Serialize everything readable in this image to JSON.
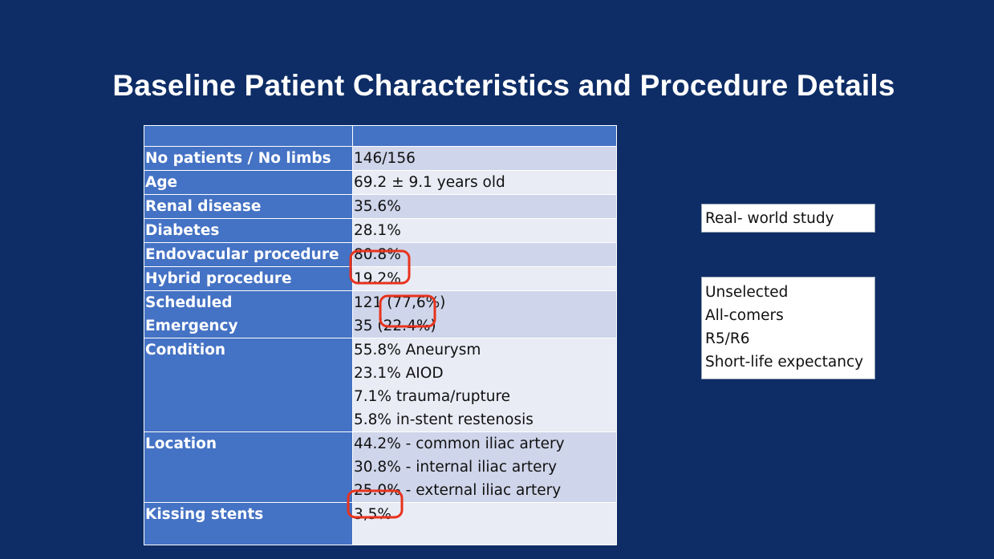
{
  "title": "Baseline Patient Characteristics and Procedure Details",
  "table": {
    "header": [
      "",
      ""
    ],
    "rows": [
      {
        "label": [
          "No patients / No limbs"
        ],
        "value": [
          "146/156"
        ]
      },
      {
        "label": [
          "Age"
        ],
        "value": [
          "69.2 ± 9.1 years old"
        ]
      },
      {
        "label": [
          "Renal disease"
        ],
        "value": [
          "35.6%"
        ]
      },
      {
        "label": [
          "Diabetes"
        ],
        "value": [
          "28.1%"
        ]
      },
      {
        "label": [
          "Endovacular procedure"
        ],
        "value": [
          "80.8%"
        ]
      },
      {
        "label": [
          "Hybrid procedure"
        ],
        "value": [
          "19.2%"
        ]
      },
      {
        "label": [
          "Scheduled",
          "Emergency"
        ],
        "value": [
          "121 (77,6%)",
          "35 (22.4%)"
        ]
      },
      {
        "label": [
          "Condition"
        ],
        "value": [
          "55.8% Aneurysm",
          "23.1% AIOD",
          "7.1% trauma/rupture",
          "5.8% in-stent restenosis"
        ]
      },
      {
        "label": [
          "Location"
        ],
        "value": [
          "44.2% - common iliac artery",
          "30.8% - internal iliac artery",
          "25.0% - external iliac artery"
        ]
      },
      {
        "label": [
          "Kissing stents"
        ],
        "value": [
          "3,5%"
        ]
      }
    ]
  },
  "side_notes": {
    "box1": "Real- world study",
    "box2": [
      "Unselected",
      "All-comers",
      "R5/R6",
      "Short-life expectancy"
    ]
  },
  "colors": {
    "background": "#0e2d66",
    "label_cell": "#4472c4",
    "value_cell_dark": "#cfd5ea",
    "value_cell_light": "#e9ebf5",
    "highlight": "#e8321c"
  }
}
